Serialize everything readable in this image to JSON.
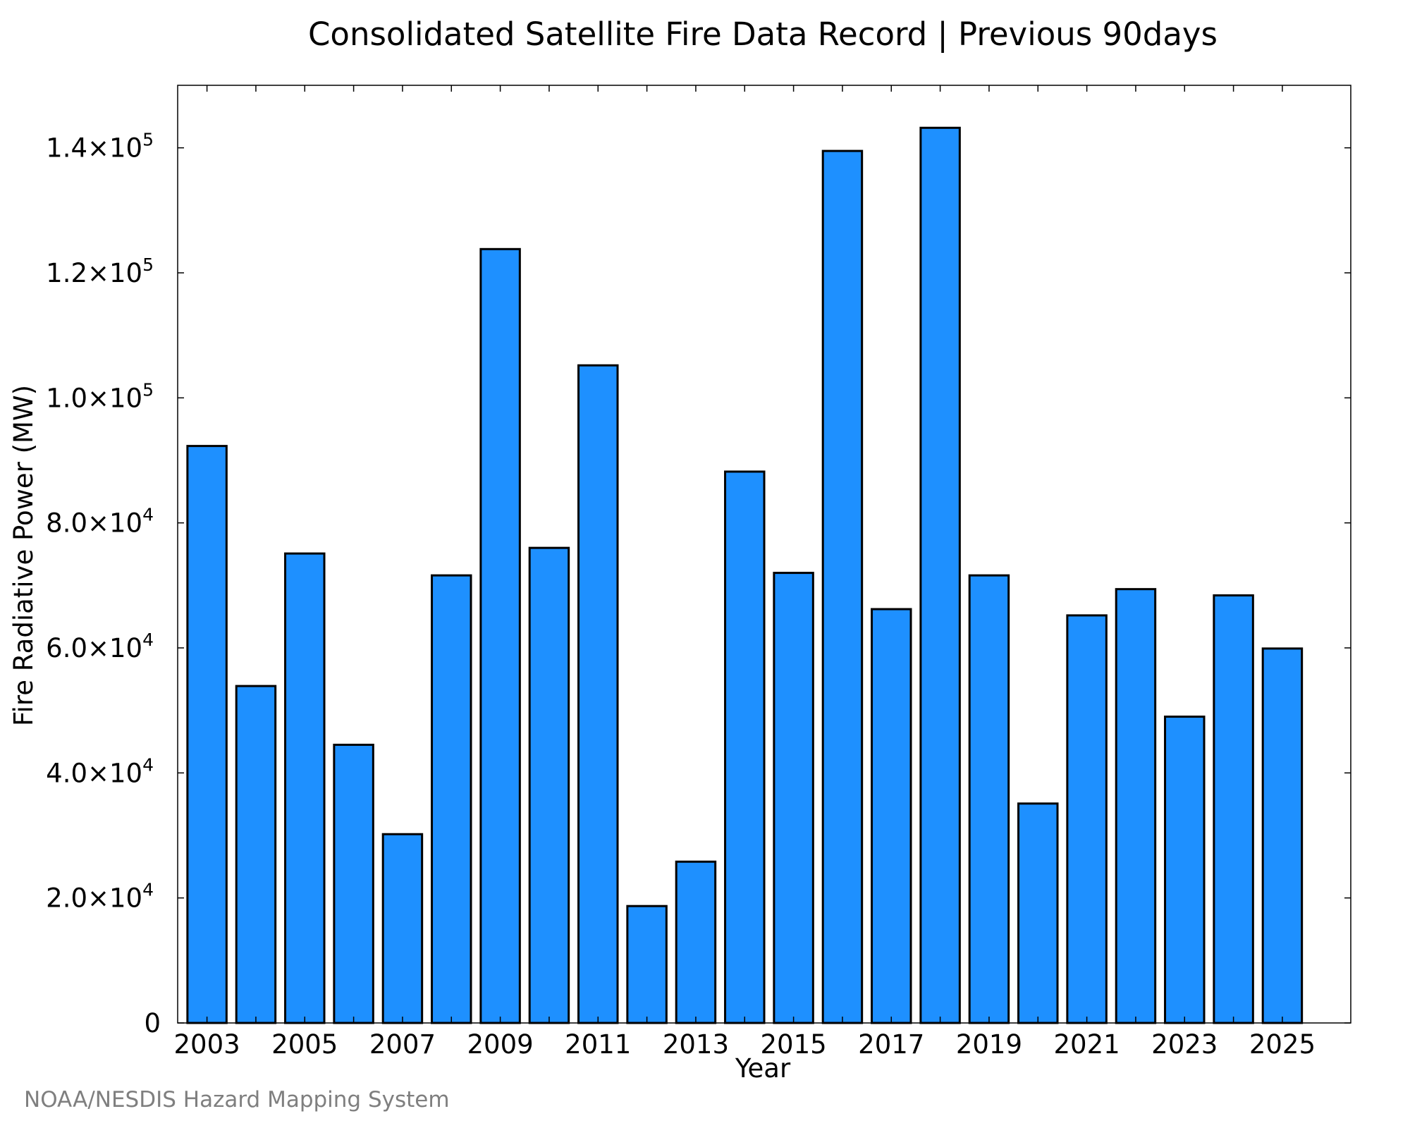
{
  "chart_data": {
    "type": "bar",
    "title": "Consolidated Satellite Fire Data Record | Previous 90days",
    "xlabel": "Year",
    "ylabel": "Fire Radiative Power (MW)",
    "categories": [
      2003,
      2004,
      2005,
      2006,
      2007,
      2008,
      2009,
      2010,
      2011,
      2012,
      2013,
      2014,
      2015,
      2016,
      2017,
      2018,
      2019,
      2020,
      2021,
      2022,
      2023,
      2024,
      2025
    ],
    "values": [
      92300,
      53900,
      75100,
      44500,
      30200,
      71600,
      123800,
      76000,
      105200,
      18700,
      25800,
      88200,
      72000,
      139500,
      66200,
      143200,
      71600,
      35100,
      65200,
      69400,
      49000,
      68400,
      59900
    ],
    "x_tick_labels": [
      "2003",
      "2005",
      "2007",
      "2009",
      "2011",
      "2013",
      "2015",
      "2017",
      "2019",
      "2021",
      "2023",
      "2025"
    ],
    "y_ticks": [
      {
        "value": 0,
        "mantissa": "0",
        "exp": ""
      },
      {
        "value": 20000,
        "mantissa": "2.0×10",
        "exp": "4"
      },
      {
        "value": 40000,
        "mantissa": "4.0×10",
        "exp": "4"
      },
      {
        "value": 60000,
        "mantissa": "6.0×10",
        "exp": "4"
      },
      {
        "value": 80000,
        "mantissa": "8.0×10",
        "exp": "4"
      },
      {
        "value": 100000,
        "mantissa": "1.0×10",
        "exp": "5"
      },
      {
        "value": 120000,
        "mantissa": "1.2×10",
        "exp": "5"
      },
      {
        "value": 140000,
        "mantissa": "1.4×10",
        "exp": "5"
      }
    ],
    "ylim": [
      0,
      150000
    ],
    "xlim": [
      2002.4,
      2026.4
    ],
    "bar_color": "#1e90ff",
    "edge_color": "#000000",
    "grid": false,
    "legend": "none"
  },
  "credit": "NOAA/NESDIS Hazard Mapping System"
}
